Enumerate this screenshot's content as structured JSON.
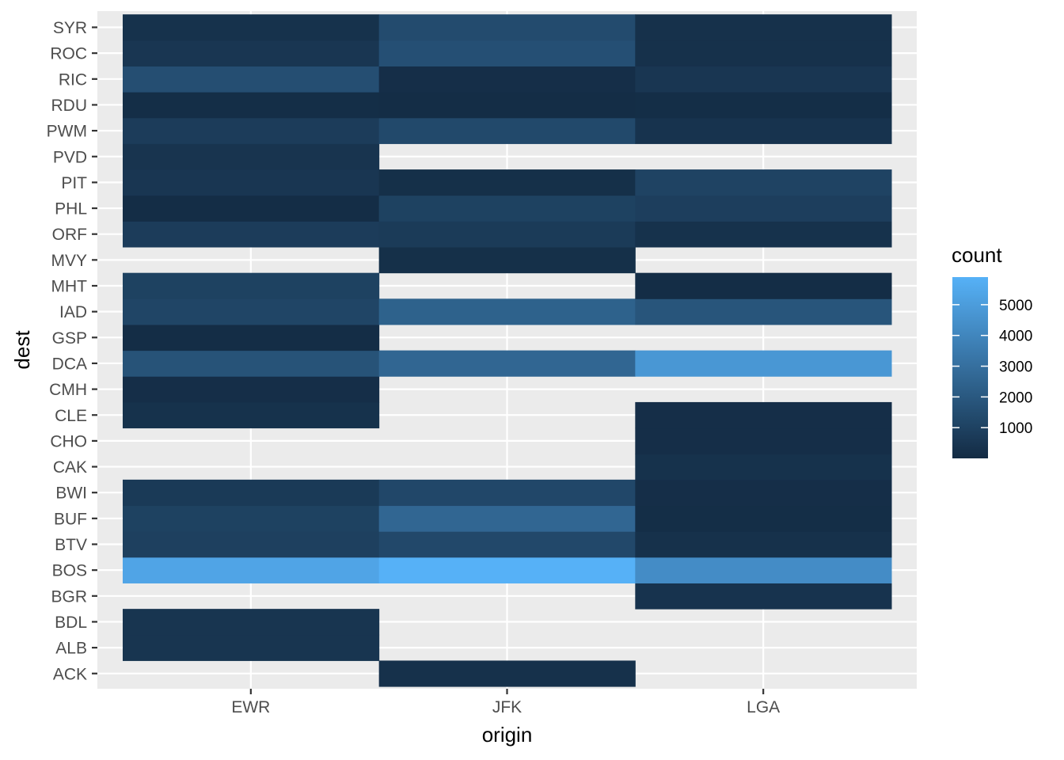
{
  "chart_data": {
    "type": "heatmap",
    "xlabel": "origin",
    "ylabel": "dest",
    "x_categories": [
      "EWR",
      "JFK",
      "LGA"
    ],
    "y_categories": [
      "ACK",
      "ALB",
      "BDL",
      "BGR",
      "BOS",
      "BTV",
      "BUF",
      "BWI",
      "CAK",
      "CHO",
      "CLE",
      "CMH",
      "DCA",
      "GSP",
      "IAD",
      "MHT",
      "MVY",
      "ORF",
      "PHL",
      "PIT",
      "PVD",
      "PWM",
      "RDU",
      "RIC",
      "ROC",
      "SYR"
    ],
    "cells": [
      {
        "x": "JFK",
        "y": "ACK",
        "value": 265
      },
      {
        "x": "EWR",
        "y": "ALB",
        "value": 439
      },
      {
        "x": "EWR",
        "y": "BDL",
        "value": 443
      },
      {
        "x": "LGA",
        "y": "BGR",
        "value": 375
      },
      {
        "x": "EWR",
        "y": "BOS",
        "value": 5327
      },
      {
        "x": "JFK",
        "y": "BOS",
        "value": 5898
      },
      {
        "x": "LGA",
        "y": "BOS",
        "value": 4283
      },
      {
        "x": "EWR",
        "y": "BTV",
        "value": 931
      },
      {
        "x": "JFK",
        "y": "BTV",
        "value": 1291
      },
      {
        "x": "LGA",
        "y": "BTV",
        "value": 265
      },
      {
        "x": "EWR",
        "y": "BUF",
        "value": 1000
      },
      {
        "x": "JFK",
        "y": "BUF",
        "value": 2600
      },
      {
        "x": "LGA",
        "y": "BUF",
        "value": 130
      },
      {
        "x": "EWR",
        "y": "BWI",
        "value": 650
      },
      {
        "x": "JFK",
        "y": "BWI",
        "value": 1250
      },
      {
        "x": "LGA",
        "y": "BWI",
        "value": 150
      },
      {
        "x": "LGA",
        "y": "CAK",
        "value": 300
      },
      {
        "x": "LGA",
        "y": "CHO",
        "value": 150
      },
      {
        "x": "EWR",
        "y": "CLE",
        "value": 300
      },
      {
        "x": "LGA",
        "y": "CLE",
        "value": 150
      },
      {
        "x": "EWR",
        "y": "CMH",
        "value": 150
      },
      {
        "x": "EWR",
        "y": "DCA",
        "value": 1750
      },
      {
        "x": "JFK",
        "y": "DCA",
        "value": 2600
      },
      {
        "x": "LGA",
        "y": "DCA",
        "value": 4750
      },
      {
        "x": "EWR",
        "y": "GSP",
        "value": 100
      },
      {
        "x": "EWR",
        "y": "IAD",
        "value": 1150
      },
      {
        "x": "JFK",
        "y": "IAD",
        "value": 2400
      },
      {
        "x": "LGA",
        "y": "IAD",
        "value": 1850
      },
      {
        "x": "EWR",
        "y": "MHT",
        "value": 1000
      },
      {
        "x": "LGA",
        "y": "MHT",
        "value": 100
      },
      {
        "x": "JFK",
        "y": "MVY",
        "value": 200
      },
      {
        "x": "EWR",
        "y": "ORF",
        "value": 750
      },
      {
        "x": "JFK",
        "y": "ORF",
        "value": 700
      },
      {
        "x": "LGA",
        "y": "ORF",
        "value": 300
      },
      {
        "x": "EWR",
        "y": "PHL",
        "value": 100
      },
      {
        "x": "JFK",
        "y": "PHL",
        "value": 1000
      },
      {
        "x": "LGA",
        "y": "PHL",
        "value": 850
      },
      {
        "x": "EWR",
        "y": "PIT",
        "value": 500
      },
      {
        "x": "JFK",
        "y": "PIT",
        "value": 200
      },
      {
        "x": "LGA",
        "y": "PIT",
        "value": 1050
      },
      {
        "x": "EWR",
        "y": "PVD",
        "value": 400
      },
      {
        "x": "EWR",
        "y": "PWM",
        "value": 750
      },
      {
        "x": "JFK",
        "y": "PWM",
        "value": 1300
      },
      {
        "x": "LGA",
        "y": "PWM",
        "value": 350
      },
      {
        "x": "EWR",
        "y": "RDU",
        "value": 120
      },
      {
        "x": "JFK",
        "y": "RDU",
        "value": 100
      },
      {
        "x": "LGA",
        "y": "RDU",
        "value": 120
      },
      {
        "x": "EWR",
        "y": "RIC",
        "value": 1550
      },
      {
        "x": "JFK",
        "y": "RIC",
        "value": 150
      },
      {
        "x": "LGA",
        "y": "RIC",
        "value": 500
      },
      {
        "x": "EWR",
        "y": "ROC",
        "value": 500
      },
      {
        "x": "JFK",
        "y": "ROC",
        "value": 1600
      },
      {
        "x": "LGA",
        "y": "ROC",
        "value": 250
      },
      {
        "x": "EWR",
        "y": "SYR",
        "value": 300
      },
      {
        "x": "JFK",
        "y": "SYR",
        "value": 1400
      },
      {
        "x": "LGA",
        "y": "SYR",
        "value": 250
      }
    ],
    "legend": {
      "title": "count",
      "position": "right",
      "min": 1,
      "max": 5898,
      "ticks": [
        1000,
        2000,
        3000,
        4000,
        5000
      ],
      "low_color": "#132B43",
      "high_color": "#56B1F7"
    },
    "panel_background": "#EBEBEB",
    "grid_color": "#FFFFFF",
    "grid": true
  }
}
